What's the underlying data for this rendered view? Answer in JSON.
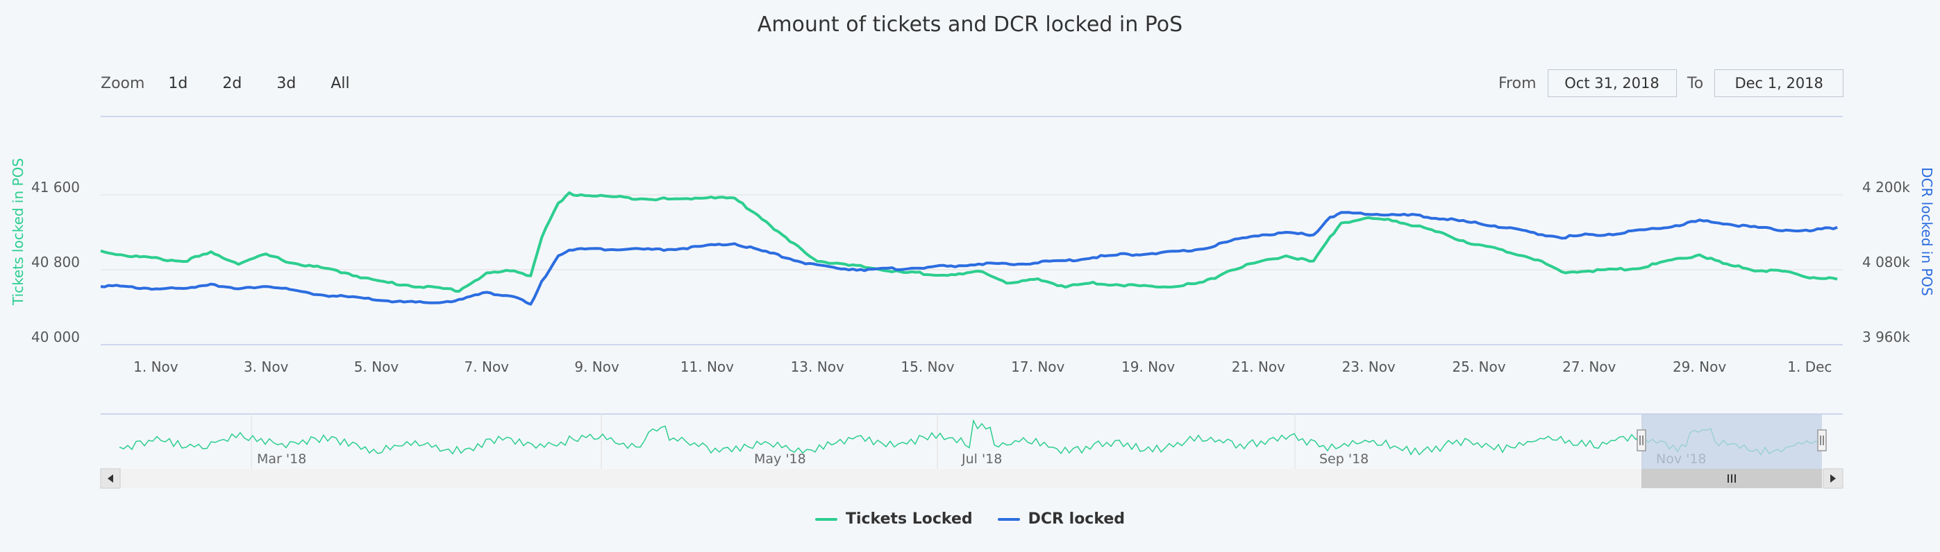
{
  "title": "Amount of tickets and DCR locked in PoS",
  "zoom": {
    "label": "Zoom",
    "buttons": [
      "1d",
      "2d",
      "3d",
      "All"
    ]
  },
  "range": {
    "from_label": "From",
    "from_value": "Oct 31, 2018",
    "to_label": "To",
    "to_value": "Dec 1, 2018"
  },
  "colors": {
    "tickets": "#2dce8f",
    "dcr": "#2c6de0",
    "navigator_fill": "#c3d2e6",
    "axis": "#ccd6eb"
  },
  "chart_data": {
    "type": "line",
    "ylabel_left": "Tickets locked in POS",
    "ylabel_right": "DCR locked in POS",
    "yticks_left": [
      "41 600",
      "40 800",
      "40 000"
    ],
    "yticks_right": [
      "4 200k",
      "4 080k",
      "3 960k"
    ],
    "ylim_left": [
      40000,
      41600
    ],
    "ylim_right": [
      3960000,
      4200000
    ],
    "xlim": [
      0,
      31.6
    ],
    "xticks": [
      "1. Nov",
      "3. Nov",
      "5. Nov",
      "7. Nov",
      "9. Nov",
      "11. Nov",
      "13. Nov",
      "15. Nov",
      "17. Nov",
      "19. Nov",
      "21. Nov",
      "23. Nov",
      "25. Nov",
      "27. Nov",
      "29. Nov",
      "1. Dec"
    ],
    "xtick_values": [
      1,
      3,
      5,
      7,
      9,
      11,
      13,
      15,
      17,
      19,
      21,
      23,
      25,
      27,
      29,
      31
    ],
    "grid": true,
    "legend": "bottom-center",
    "series": [
      {
        "name": "Tickets Locked",
        "x": [
          0,
          0.5,
          1,
          1.5,
          2,
          2.5,
          3,
          3.5,
          4,
          4.5,
          5,
          5.5,
          6,
          6.5,
          7,
          7.5,
          7.8,
          8,
          8.3,
          8.5,
          9,
          9.5,
          10,
          10.5,
          11,
          11.5,
          12,
          12.5,
          13,
          13.5,
          14,
          14.5,
          15,
          15.5,
          16,
          16.5,
          17,
          17.5,
          18,
          18.5,
          19,
          19.5,
          20,
          20.5,
          21,
          21.5,
          22,
          22.3,
          22.5,
          23,
          23.5,
          24,
          24.5,
          25,
          25.5,
          26,
          26.5,
          27,
          27.5,
          28,
          28.5,
          29,
          29.5,
          30,
          30.5,
          31,
          31.5
        ],
        "values": [
          41000,
          40950,
          40920,
          40890,
          40980,
          40870,
          40960,
          40870,
          40820,
          40760,
          40680,
          40640,
          40610,
          40580,
          40760,
          40790,
          40740,
          41150,
          41500,
          41610,
          41590,
          41570,
          41560,
          41550,
          41580,
          41560,
          41350,
          41100,
          40900,
          40850,
          40820,
          40770,
          40760,
          40740,
          40780,
          40650,
          40700,
          40620,
          40660,
          40640,
          40620,
          40630,
          40660,
          40800,
          40880,
          40950,
          40880,
          41150,
          41300,
          41350,
          41320,
          41250,
          41150,
          41060,
          41000,
          40920,
          40770,
          40790,
          40800,
          40830,
          40900,
          40960,
          40850,
          40800,
          40780,
          40720,
          40700
        ]
      },
      {
        "name": "DCR locked",
        "x": [
          0,
          0.5,
          1,
          1.5,
          2,
          2.5,
          3,
          3.5,
          4,
          4.5,
          5,
          5.5,
          6,
          6.5,
          7,
          7.5,
          7.8,
          8,
          8.3,
          8.5,
          9,
          9.5,
          10,
          10.5,
          11,
          11.5,
          12,
          12.5,
          13,
          13.5,
          14,
          14.5,
          15,
          15.5,
          16,
          16.5,
          17,
          17.5,
          18,
          18.5,
          19,
          19.5,
          20,
          20.5,
          21,
          21.5,
          22,
          22.3,
          22.5,
          23,
          23.5,
          24,
          24.5,
          25,
          25.5,
          26,
          26.5,
          27,
          27.5,
          28,
          28.5,
          29,
          29.5,
          30,
          30.5,
          31,
          31.5
        ],
        "values": [
          4055000,
          4052000,
          4050000,
          4049000,
          4058000,
          4048000,
          4055000,
          4046000,
          4040000,
          4036000,
          4032000,
          4028000,
          4027000,
          4031000,
          4044000,
          4037000,
          4023000,
          4060000,
          4104000,
          4112000,
          4113000,
          4114000,
          4112000,
          4114000,
          4118000,
          4122000,
          4110000,
          4098000,
          4086000,
          4082000,
          4080000,
          4082000,
          4084000,
          4086000,
          4090000,
          4088000,
          4092000,
          4094000,
          4100000,
          4104000,
          4106000,
          4108000,
          4114000,
          4126000,
          4136000,
          4138000,
          4136000,
          4165000,
          4170000,
          4170000,
          4168000,
          4166000,
          4160000,
          4154000,
          4148000,
          4138000,
          4132000,
          4136000,
          4138000,
          4144000,
          4150000,
          4158000,
          4154000,
          4148000,
          4144000,
          4142000,
          4148000
        ]
      }
    ],
    "navigator": {
      "labels": [
        "Mar '18",
        "May '18",
        "Jul '18",
        "Sep '18",
        "Nov '18"
      ]
    }
  },
  "legend_items": [
    {
      "name": "Tickets Locked"
    },
    {
      "name": "DCR locked"
    }
  ]
}
